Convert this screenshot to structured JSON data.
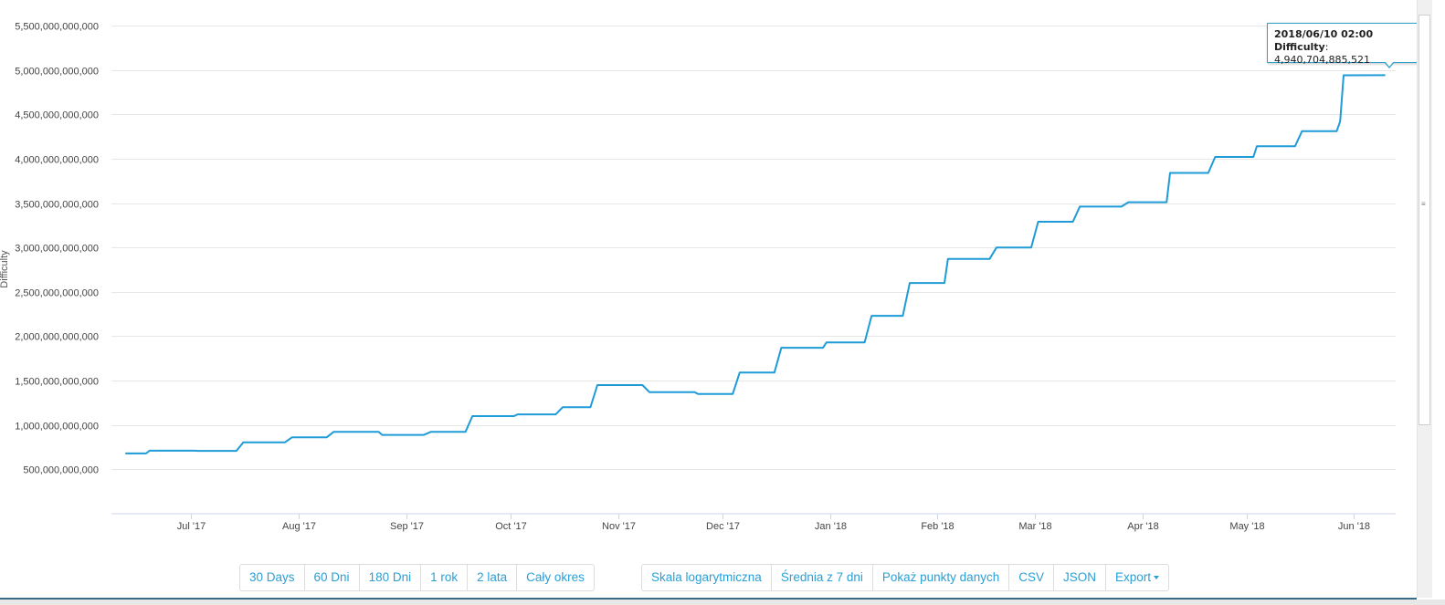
{
  "chart_data": {
    "type": "line",
    "ylabel": "Difficulty",
    "ylim": [
      0,
      5500000000000
    ],
    "yticks": [
      "5,500,000,000,000",
      "5,000,000,000,000",
      "4,500,000,000,000",
      "4,000,000,000,000",
      "3,500,000,000,000",
      "3,000,000,000,000",
      "2,500,000,000,000",
      "2,000,000,000,000",
      "1,500,000,000,000",
      "1,000,000,000,000",
      "500,000,000,000"
    ],
    "ytick_values": [
      5500000000000,
      5000000000000,
      4500000000000,
      4000000000000,
      3500000000000,
      3000000000000,
      2500000000000,
      2000000000000,
      1500000000000,
      1000000000000,
      500000000000
    ],
    "xlim": [
      "2017-06-08",
      "2018-06-13"
    ],
    "xticks": [
      {
        "label": "Jul '17",
        "date": "2017-07-01"
      },
      {
        "label": "Aug '17",
        "date": "2017-08-01"
      },
      {
        "label": "Sep '17",
        "date": "2017-09-01"
      },
      {
        "label": "Oct '17",
        "date": "2017-10-01"
      },
      {
        "label": "Nov '17",
        "date": "2017-11-01"
      },
      {
        "label": "Dec '17",
        "date": "2017-12-01"
      },
      {
        "label": "Jan '18",
        "date": "2018-01-01"
      },
      {
        "label": "Feb '18",
        "date": "2018-02-01"
      },
      {
        "label": "Mar '18",
        "date": "2018-03-01"
      },
      {
        "label": "Apr '18",
        "date": "2018-04-01"
      },
      {
        "label": "May '18",
        "date": "2018-05-01"
      },
      {
        "label": "Jun '18",
        "date": "2018-06-01"
      }
    ],
    "grid": true,
    "series": [
      {
        "color": "#1f9bd7",
        "points": [
          [
            "2017-06-12",
            680000000000
          ],
          [
            "2017-06-18",
            680000000000
          ],
          [
            "2017-06-19",
            710000000000
          ],
          [
            "2017-07-02",
            710000000000
          ],
          [
            "2017-07-03",
            708000000000
          ],
          [
            "2017-07-14",
            708000000000
          ],
          [
            "2017-07-16",
            805000000000
          ],
          [
            "2017-07-28",
            805000000000
          ],
          [
            "2017-07-30",
            860000000000
          ],
          [
            "2017-08-09",
            860000000000
          ],
          [
            "2017-08-11",
            922000000000
          ],
          [
            "2017-08-24",
            922000000000
          ],
          [
            "2017-08-25",
            888000000000
          ],
          [
            "2017-09-06",
            888000000000
          ],
          [
            "2017-09-08",
            922000000000
          ],
          [
            "2017-09-18",
            922000000000
          ],
          [
            "2017-09-20",
            1100000000000
          ],
          [
            "2017-10-02",
            1100000000000
          ],
          [
            "2017-10-03",
            1120000000000
          ],
          [
            "2017-10-14",
            1120000000000
          ],
          [
            "2017-10-16",
            1200000000000
          ],
          [
            "2017-10-24",
            1200000000000
          ],
          [
            "2017-10-26",
            1450000000000
          ],
          [
            "2017-11-08",
            1450000000000
          ],
          [
            "2017-11-10",
            1370000000000
          ],
          [
            "2017-11-23",
            1370000000000
          ],
          [
            "2017-11-24",
            1350000000000
          ],
          [
            "2017-12-04",
            1350000000000
          ],
          [
            "2017-12-06",
            1590000000000
          ],
          [
            "2017-12-16",
            1590000000000
          ],
          [
            "2017-12-18",
            1870000000000
          ],
          [
            "2017-12-30",
            1870000000000
          ],
          [
            "2017-12-31",
            1930000000000
          ],
          [
            "2018-01-11",
            1930000000000
          ],
          [
            "2018-01-13",
            2230000000000
          ],
          [
            "2018-01-22",
            2230000000000
          ],
          [
            "2018-01-24",
            2600000000000
          ],
          [
            "2018-02-03",
            2600000000000
          ],
          [
            "2018-02-04",
            2870000000000
          ],
          [
            "2018-02-16",
            2870000000000
          ],
          [
            "2018-02-18",
            3000000000000
          ],
          [
            "2018-02-28",
            3000000000000
          ],
          [
            "2018-03-02",
            3290000000000
          ],
          [
            "2018-03-12",
            3290000000000
          ],
          [
            "2018-03-14",
            3460000000000
          ],
          [
            "2018-03-26",
            3460000000000
          ],
          [
            "2018-03-28",
            3510000000000
          ],
          [
            "2018-04-08",
            3510000000000
          ],
          [
            "2018-04-09",
            3840000000000
          ],
          [
            "2018-04-20",
            3840000000000
          ],
          [
            "2018-04-22",
            4020000000000
          ],
          [
            "2018-05-03",
            4020000000000
          ],
          [
            "2018-05-04",
            4140000000000
          ],
          [
            "2018-05-15",
            4140000000000
          ],
          [
            "2018-05-17",
            4310000000000
          ],
          [
            "2018-05-27",
            4310000000000
          ],
          [
            "2018-05-28",
            4420000000000
          ],
          [
            "2018-05-29",
            4940000000000
          ],
          [
            "2018-06-10",
            4940704885521
          ]
        ]
      }
    ]
  },
  "tooltip": {
    "date": "2018/06/10 02:00",
    "label": "Difficulty",
    "value": "4,940,704,885,521"
  },
  "range_buttons": [
    "30 Days",
    "60 Dni",
    "180 Dni",
    "1 rok",
    "2 lata",
    "Cały okres"
  ],
  "option_buttons": {
    "log_scale": "Skala logarytmiczna",
    "avg7": "Średnia z 7 dni",
    "show_points": "Pokaż punkty danych",
    "csv": "CSV",
    "json": "JSON",
    "export": "Export"
  }
}
